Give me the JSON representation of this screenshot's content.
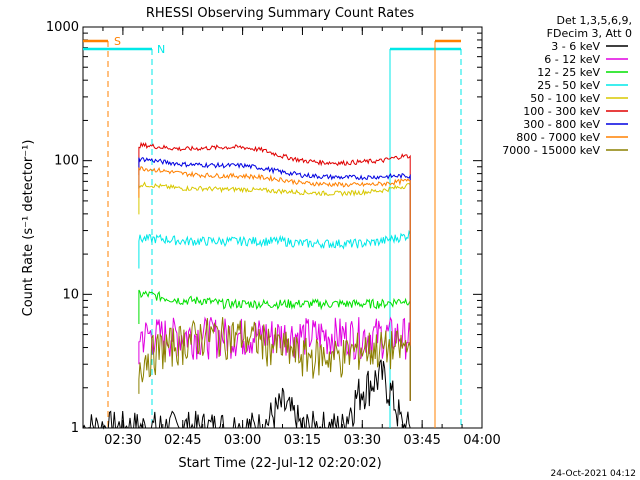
{
  "chart_data": {
    "type": "line",
    "title": "RHESSI Observing Summary Count Rates",
    "xlabel": "Start Time (22-Jul-12 02:20:02)",
    "ylabel": "Count Rate (s⁻¹ detector⁻¹)",
    "yscale": "log",
    "ylim": [
      1,
      1000
    ],
    "xlim": [
      "02:20",
      "04:00"
    ],
    "x_ticks": [
      "02:30",
      "02:45",
      "03:00",
      "03:15",
      "03:30",
      "03:45",
      "04:00"
    ],
    "y_ticks": [
      "1",
      "10",
      "100",
      "1000"
    ],
    "legend_header": [
      "Det 1,3,5,6,9,",
      "FDecim 3, Att 0"
    ],
    "legend_position": "right",
    "series": [
      {
        "name": "3 - 6 keV",
        "color": "#000000",
        "x": [
          "02:20",
          "02:36",
          "02:38",
          "02:40",
          "02:45",
          "02:50",
          "02:55",
          "03:00",
          "03:05",
          "03:10",
          "03:15",
          "03:20",
          "03:25",
          "03:30",
          "03:35",
          "03:40",
          "03:42"
        ],
        "values": [
          1,
          1,
          1,
          1,
          1,
          1,
          1,
          1,
          1,
          1.5,
          1,
          1,
          1,
          2,
          2.5,
          1,
          1
        ]
      },
      {
        "name": "6 - 12 keV",
        "color": "#e000e0",
        "x": [
          "02:34",
          "02:36",
          "02:40",
          "02:45",
          "02:50",
          "02:55",
          "03:00",
          "03:05",
          "03:10",
          "03:15",
          "03:20",
          "03:25",
          "03:30",
          "03:35",
          "03:40",
          "03:42"
        ],
        "values": [
          5,
          5,
          5,
          5,
          5,
          5,
          5,
          5,
          5,
          5,
          5,
          5,
          5,
          5,
          5,
          5
        ]
      },
      {
        "name": "12 - 25 keV",
        "color": "#00e000",
        "x": [
          "02:34",
          "02:36",
          "02:40",
          "02:45",
          "02:50",
          "02:55",
          "03:00",
          "03:05",
          "03:10",
          "03:15",
          "03:20",
          "03:25",
          "03:30",
          "03:35",
          "03:40",
          "03:42"
        ],
        "values": [
          10,
          10,
          9.5,
          9,
          9,
          8.5,
          8.5,
          8.5,
          8.5,
          8.5,
          8.5,
          8.5,
          8.5,
          8.5,
          9,
          9
        ]
      },
      {
        "name": "25 - 50 keV",
        "color": "#00e8e8",
        "x": [
          "02:34",
          "02:36",
          "02:40",
          "02:45",
          "02:50",
          "02:55",
          "03:00",
          "03:05",
          "03:10",
          "03:15",
          "03:20",
          "03:25",
          "03:30",
          "03:35",
          "03:40",
          "03:42"
        ],
        "values": [
          26,
          26,
          26,
          25,
          25,
          25,
          25,
          25,
          25,
          24,
          24,
          24,
          24,
          25,
          27,
          28
        ]
      },
      {
        "name": "50 - 100 keV",
        "color": "#d8c800",
        "x": [
          "02:34",
          "02:36",
          "02:40",
          "02:45",
          "02:50",
          "02:55",
          "03:00",
          "03:05",
          "03:10",
          "03:15",
          "03:20",
          "03:25",
          "03:30",
          "03:35",
          "03:40",
          "03:42"
        ],
        "values": [
          66,
          66,
          64,
          62,
          62,
          61,
          61,
          60,
          59,
          58,
          57,
          57,
          58,
          60,
          64,
          66
        ]
      },
      {
        "name": "100 - 300 keV",
        "color": "#e00000",
        "x": [
          "02:34",
          "02:36",
          "02:40",
          "02:45",
          "02:50",
          "02:55",
          "03:00",
          "03:05",
          "03:10",
          "03:15",
          "03:20",
          "03:25",
          "03:30",
          "03:35",
          "03:40",
          "03:42"
        ],
        "values": [
          130,
          130,
          126,
          122,
          124,
          126,
          126,
          120,
          108,
          100,
          97,
          96,
          98,
          100,
          108,
          108
        ]
      },
      {
        "name": "300 - 800 keV",
        "color": "#0000e0",
        "x": [
          "02:34",
          "02:36",
          "02:40",
          "02:45",
          "02:50",
          "02:55",
          "03:00",
          "03:05",
          "03:10",
          "03:15",
          "03:20",
          "03:25",
          "03:30",
          "03:35",
          "03:40",
          "03:42"
        ],
        "values": [
          103,
          102,
          98,
          94,
          93,
          92,
          92,
          88,
          82,
          78,
          76,
          75,
          75,
          76,
          77,
          77
        ]
      },
      {
        "name": "800 - 7000 keV",
        "color": "#ff8000",
        "x": [
          "02:34",
          "02:36",
          "02:40",
          "02:45",
          "02:50",
          "02:55",
          "03:00",
          "03:05",
          "03:10",
          "03:15",
          "03:20",
          "03:25",
          "03:30",
          "03:35",
          "03:40",
          "03:42"
        ],
        "values": [
          88,
          87,
          84,
          80,
          78,
          77,
          77,
          75,
          72,
          68,
          67,
          66,
          66,
          67,
          70,
          71
        ]
      },
      {
        "name": "7000 - 15000 keV",
        "color": "#8b8000",
        "x": [
          "02:34",
          "02:36",
          "02:40",
          "02:45",
          "02:50",
          "02:55",
          "03:00",
          "03:05",
          "03:10",
          "03:15",
          "03:20",
          "03:25",
          "03:30",
          "03:35",
          "03:40",
          "03:42"
        ],
        "values": [
          3,
          3.5,
          4,
          4.5,
          5,
          5,
          5,
          4.5,
          4,
          3.5,
          3.5,
          3.5,
          4,
          4,
          4,
          4
        ]
      }
    ],
    "annotations": [
      {
        "text": "S",
        "color": "#ff8000"
      },
      {
        "text": "N",
        "color": "#00e8e8"
      }
    ],
    "footer_date": "24-Oct-2021 04:12"
  }
}
